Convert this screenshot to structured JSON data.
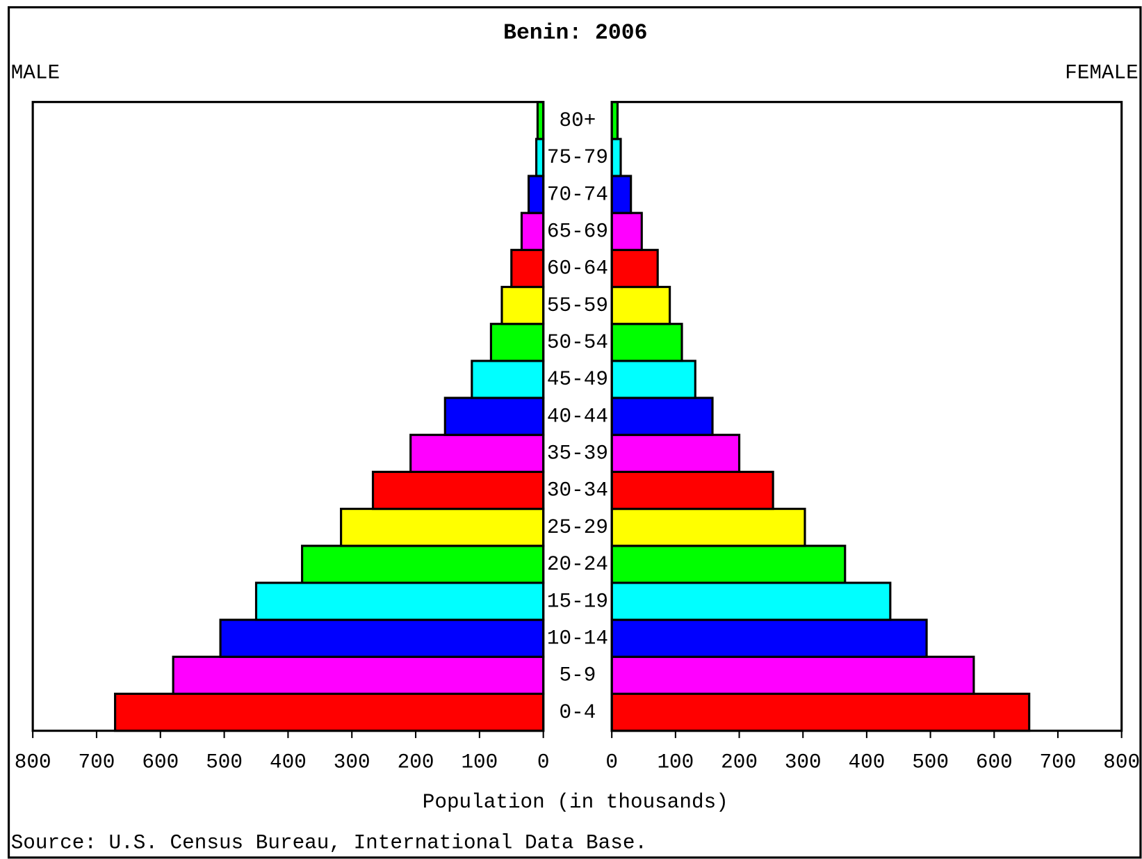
{
  "chart_data": {
    "type": "pyramid",
    "title": "Benin: 2006",
    "xlabel": "Population (in thousands)",
    "source": "Source: U.S. Census Bureau, International Data Base.",
    "categories": [
      "0-4",
      "5-9",
      "10-14",
      "15-19",
      "20-24",
      "25-29",
      "30-34",
      "35-39",
      "40-44",
      "45-49",
      "50-54",
      "55-59",
      "60-64",
      "65-69",
      "70-74",
      "75-79",
      "80+"
    ],
    "colors": [
      "#ff0000",
      "#ff00ff",
      "#0000ff",
      "#00ffff",
      "#00ff00",
      "#ffff00",
      "#ff0000",
      "#ff00ff",
      "#0000ff",
      "#00ffff",
      "#00ff00",
      "#ffff00",
      "#ff0000",
      "#ff00ff",
      "#0000ff",
      "#00ffff",
      "#00ff00"
    ],
    "series": [
      {
        "name": "MALE",
        "side": "left",
        "values": [
          671,
          580,
          506,
          450,
          378,
          317,
          267,
          208,
          154,
          112,
          82,
          65,
          50,
          34,
          23,
          11,
          9
        ]
      },
      {
        "name": "FEMALE",
        "side": "right",
        "values": [
          655,
          568,
          494,
          437,
          366,
          303,
          253,
          200,
          158,
          131,
          110,
          91,
          72,
          47,
          30,
          14,
          9
        ]
      }
    ],
    "xlim": [
      0,
      800
    ],
    "xticks": [
      0,
      100,
      200,
      300,
      400,
      500,
      600,
      700,
      800
    ]
  }
}
